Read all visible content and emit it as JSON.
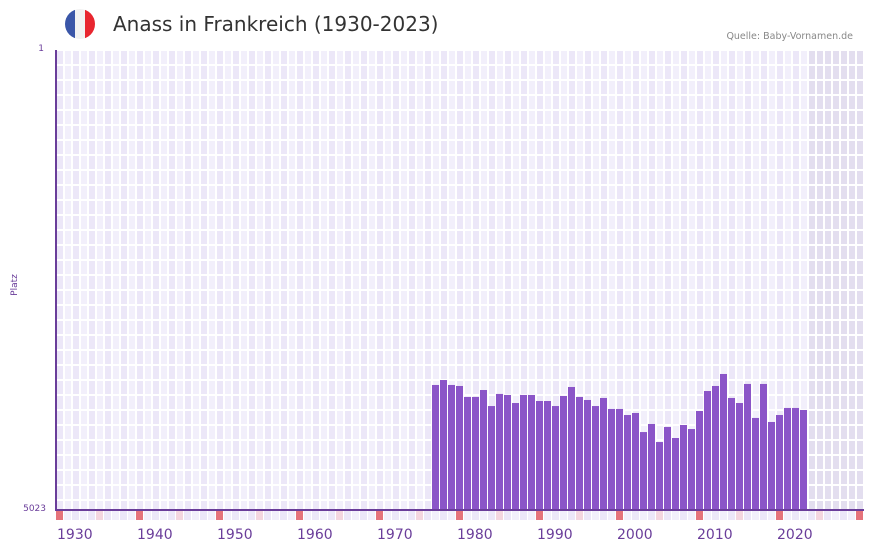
{
  "header": {
    "title": "Anass in Frankreich (1930-2023)",
    "source": "Quelle: Baby-Vornamen.de",
    "flag": {
      "name": "france-flag-icon",
      "colors": [
        "#3a56a8",
        "#f2f2f2",
        "#e8262f"
      ]
    }
  },
  "colors": {
    "bar": "#8b55c8",
    "axis": "#6a3d9a",
    "grid_bg_a": "#f2effb",
    "grid_bg_b": "#ece7f8",
    "future_bg": "#e3deef",
    "decade_marker": "#e5737b",
    "half_decade_marker": "#f4d6df"
  },
  "chart_data": {
    "type": "bar",
    "title": "Anass in Frankreich (1930-2023)",
    "xlabel": "",
    "ylabel": "Platz",
    "y_inverted": true,
    "ylim": [
      1,
      5023
    ],
    "ytick_labels": [
      "1",
      "5023"
    ],
    "xlim": [
      1930,
      2030
    ],
    "xtick_labels": [
      "1930",
      "1940",
      "1950",
      "1960",
      "1970",
      "1980",
      "1990",
      "2000",
      "2010",
      "2020"
    ],
    "grid": true,
    "shaded_future_from": 2024,
    "categories": [
      1977,
      1978,
      1979,
      1980,
      1981,
      1982,
      1983,
      1984,
      1985,
      1986,
      1987,
      1988,
      1989,
      1990,
      1991,
      1992,
      1993,
      1994,
      1995,
      1996,
      1997,
      1998,
      1999,
      2000,
      2001,
      2002,
      2003,
      2004,
      2005,
      2006,
      2007,
      2008,
      2009,
      2010,
      2011,
      2012,
      2013,
      2014,
      2015,
      2016,
      2017,
      2018,
      2019,
      2020,
      2021,
      2022,
      2023
    ],
    "values": [
      3658,
      3604,
      3658,
      3669,
      3789,
      3789,
      3713,
      3888,
      3756,
      3767,
      3855,
      3767,
      3767,
      3833,
      3833,
      3888,
      3778,
      3680,
      3789,
      3822,
      3888,
      3800,
      3920,
      3920,
      3986,
      3964,
      4172,
      4084,
      4281,
      4117,
      4237,
      4095,
      4139,
      3942,
      3724,
      3669,
      3538,
      3800,
      3855,
      3647,
      4018,
      3647,
      4062,
      3986,
      3909,
      3909,
      3931
    ]
  }
}
